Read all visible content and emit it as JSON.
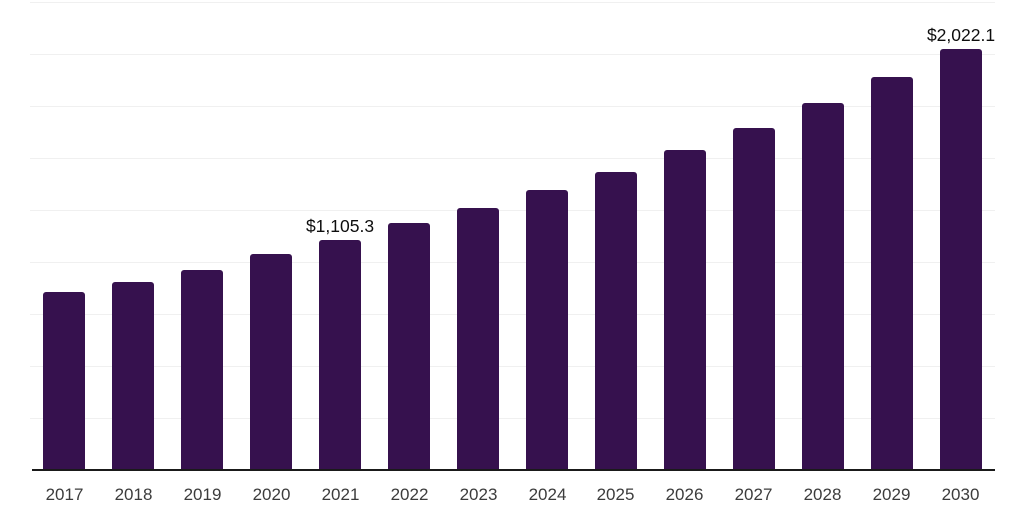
{
  "chart_data": {
    "type": "bar",
    "title": "",
    "xlabel": "",
    "ylabel": "",
    "categories": [
      "2017",
      "2018",
      "2019",
      "2020",
      "2021",
      "2022",
      "2023",
      "2024",
      "2025",
      "2026",
      "2027",
      "2028",
      "2029",
      "2030"
    ],
    "values": [
      853.4,
      906.2,
      963.9,
      1036.1,
      1105.3,
      1185.2,
      1257.3,
      1343.8,
      1430.3,
      1536.1,
      1641.9,
      1762.1,
      1887.1,
      2022.1
    ],
    "data_labels": {
      "2021": "$1,105.3",
      "2030": "$2,022.1"
    },
    "ylim": [
      0,
      2250
    ],
    "gridline_values": [
      250,
      500,
      750,
      1000,
      1250,
      1500,
      1750,
      2000,
      2250
    ],
    "grid": "horizontal-only",
    "legend_position": "none",
    "y_axis_tick_labels_visible": false,
    "colors": {
      "bar": "#36114e",
      "gridline": "#f0f0f0",
      "axis_line": "#1a1a1a",
      "x_label": "#3c3c3c",
      "data_label": "#0e0e0e",
      "background": "#ffffff"
    }
  }
}
